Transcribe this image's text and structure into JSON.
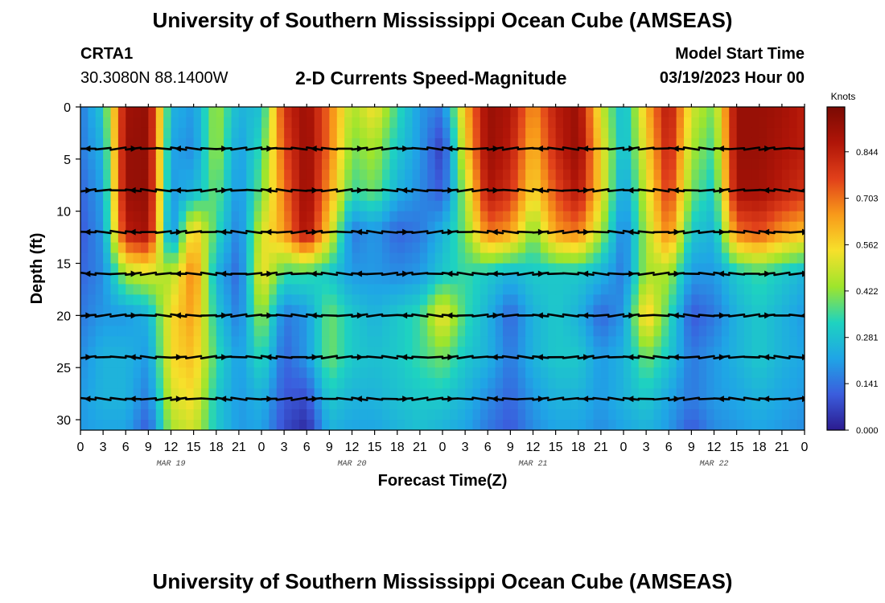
{
  "header": {
    "title": "University of Southern Mississippi Ocean Cube (AMSEAS)",
    "station": "CRTA1",
    "coordinates": "30.3080N  88.1400W",
    "subtitle": "2-D Currents Speed-Magnitude",
    "model_start_label": "Model Start Time",
    "model_start_value": "03/19/2023 Hour 00"
  },
  "footer": {
    "title": "University of Southern Mississippi Ocean Cube (AMSEAS)"
  },
  "chart_data": {
    "type": "heatmap",
    "title": "2-D Currents Speed-Magnitude",
    "xlabel": "Forecast Time(Z)",
    "ylabel": "Depth (ft)",
    "x_range_hours": [
      0,
      96
    ],
    "ylim": [
      0,
      31
    ],
    "x_tick_labels": [
      "0",
      "3",
      "6",
      "9",
      "12",
      "15",
      "18",
      "21",
      "0",
      "3",
      "6",
      "9",
      "12",
      "15",
      "18",
      "21",
      "0",
      "3",
      "6",
      "9",
      "12",
      "15",
      "18",
      "21",
      "0",
      "3",
      "6",
      "9",
      "12",
      "15",
      "18",
      "21",
      "0"
    ],
    "date_labels": [
      {
        "hour": 12,
        "label": "MAR 19"
      },
      {
        "hour": 36,
        "label": "MAR 20"
      },
      {
        "hour": 60,
        "label": "MAR 21"
      },
      {
        "hour": 84,
        "label": "MAR 22"
      }
    ],
    "y_ticks": [
      0,
      5,
      10,
      15,
      20,
      25,
      30
    ],
    "colorbar": {
      "unit_label": "Knots",
      "min": 0.0,
      "max": 0.98,
      "ticks": [
        "0.000",
        "0.141",
        "0.281",
        "0.422",
        "0.562",
        "0.703",
        "0.844"
      ],
      "tick_values": [
        0.0,
        0.141,
        0.281,
        0.422,
        0.562,
        0.703,
        0.844
      ]
    },
    "colormap": [
      "#2b1b8f",
      "#3b5ddd",
      "#1fa5e6",
      "#1ed3c0",
      "#9ee52c",
      "#f7e02b",
      "#f89a1a",
      "#e1401a",
      "#b01508",
      "#7a0a03"
    ],
    "speed_field": {
      "description": "speed (knots) sampled every 3 h (33 columns) at depths 0,4,8,12,16,20,24,28,31 ft",
      "depths_ft": [
        0,
        4,
        8,
        12,
        16,
        20,
        24,
        28,
        31
      ],
      "rows": [
        [
          0.15,
          0.3,
          0.9,
          0.93,
          0.25,
          0.2,
          0.45,
          0.25,
          0.28,
          0.8,
          0.92,
          0.7,
          0.45,
          0.55,
          0.35,
          0.2,
          0.15,
          0.6,
          0.92,
          0.88,
          0.65,
          0.85,
          0.92,
          0.5,
          0.25,
          0.6,
          0.88,
          0.5,
          0.4,
          0.92,
          0.92,
          0.9,
          0.85
        ],
        [
          0.15,
          0.25,
          0.92,
          0.93,
          0.22,
          0.18,
          0.45,
          0.2,
          0.35,
          0.75,
          0.93,
          0.7,
          0.4,
          0.45,
          0.3,
          0.2,
          0.05,
          0.55,
          0.92,
          0.85,
          0.6,
          0.82,
          0.93,
          0.55,
          0.25,
          0.55,
          0.85,
          0.45,
          0.35,
          0.92,
          0.92,
          0.88,
          0.85
        ],
        [
          0.12,
          0.22,
          0.92,
          0.93,
          0.2,
          0.25,
          0.4,
          0.18,
          0.4,
          0.7,
          0.93,
          0.65,
          0.35,
          0.4,
          0.25,
          0.18,
          0.1,
          0.45,
          0.88,
          0.8,
          0.55,
          0.75,
          0.88,
          0.55,
          0.2,
          0.5,
          0.8,
          0.4,
          0.3,
          0.9,
          0.9,
          0.85,
          0.8
        ],
        [
          0.1,
          0.2,
          0.85,
          0.9,
          0.15,
          0.6,
          0.35,
          0.15,
          0.5,
          0.65,
          0.9,
          0.55,
          0.15,
          0.2,
          0.12,
          0.15,
          0.25,
          0.4,
          0.7,
          0.65,
          0.4,
          0.65,
          0.7,
          0.45,
          0.15,
          0.45,
          0.7,
          0.3,
          0.25,
          0.7,
          0.75,
          0.65,
          0.6
        ],
        [
          0.12,
          0.18,
          0.45,
          0.5,
          0.45,
          0.7,
          0.25,
          0.12,
          0.55,
          0.35,
          0.35,
          0.3,
          0.2,
          0.2,
          0.18,
          0.2,
          0.3,
          0.35,
          0.3,
          0.25,
          0.3,
          0.3,
          0.3,
          0.25,
          0.15,
          0.45,
          0.45,
          0.2,
          0.2,
          0.3,
          0.35,
          0.3,
          0.25
        ],
        [
          0.15,
          0.2,
          0.2,
          0.25,
          0.55,
          0.65,
          0.3,
          0.15,
          0.45,
          0.15,
          0.2,
          0.4,
          0.3,
          0.25,
          0.3,
          0.35,
          0.55,
          0.35,
          0.25,
          0.12,
          0.25,
          0.3,
          0.25,
          0.12,
          0.2,
          0.6,
          0.35,
          0.1,
          0.15,
          0.25,
          0.3,
          0.25,
          0.2
        ],
        [
          0.18,
          0.25,
          0.25,
          0.2,
          0.55,
          0.6,
          0.35,
          0.2,
          0.35,
          0.12,
          0.2,
          0.4,
          0.3,
          0.28,
          0.3,
          0.35,
          0.4,
          0.3,
          0.25,
          0.15,
          0.25,
          0.3,
          0.3,
          0.2,
          0.25,
          0.4,
          0.3,
          0.15,
          0.2,
          0.25,
          0.3,
          0.25,
          0.22
        ],
        [
          0.2,
          0.25,
          0.25,
          0.15,
          0.5,
          0.55,
          0.3,
          0.2,
          0.25,
          0.1,
          0.08,
          0.3,
          0.25,
          0.25,
          0.28,
          0.3,
          0.3,
          0.25,
          0.18,
          0.12,
          0.2,
          0.25,
          0.25,
          0.2,
          0.25,
          0.3,
          0.22,
          0.15,
          0.2,
          0.22,
          0.25,
          0.22,
          0.2
        ],
        [
          0.2,
          0.22,
          0.22,
          0.1,
          0.45,
          0.5,
          0.3,
          0.2,
          0.22,
          0.08,
          0.02,
          0.25,
          0.22,
          0.22,
          0.25,
          0.28,
          0.25,
          0.22,
          0.15,
          0.1,
          0.18,
          0.22,
          0.22,
          0.18,
          0.22,
          0.25,
          0.2,
          0.1,
          0.18,
          0.2,
          0.22,
          0.2,
          0.18
        ]
      ]
    },
    "vector_rows_depth_ft": [
      4,
      8,
      12,
      16,
      20,
      24,
      28
    ],
    "vectors_note": "current direction arrows (velocity vectors) at each depth row, mostly oriented east-west"
  }
}
